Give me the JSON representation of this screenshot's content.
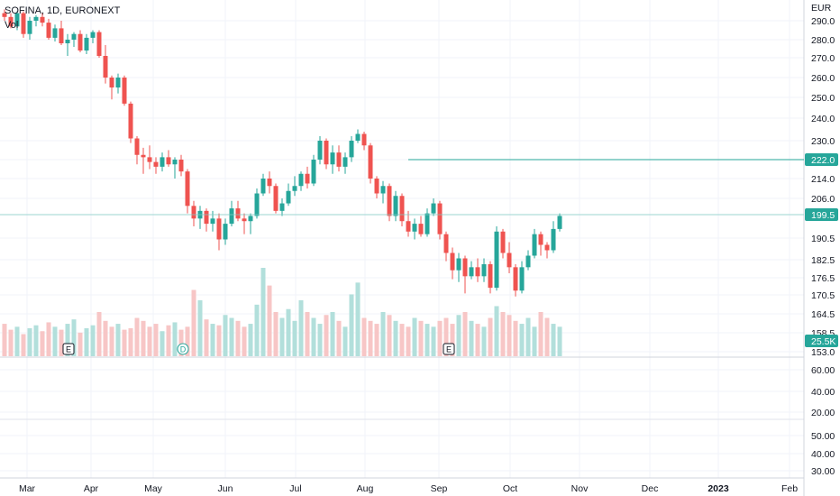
{
  "header": {
    "title": "SOFINA, 1D, EURONEXT",
    "volume_label": "Vol"
  },
  "colors": {
    "up": "#26a69a",
    "down": "#ef5350",
    "up_vol": "#b2dfdb",
    "down_vol": "#f7c6c6",
    "grid": "#f0f3fa"
  },
  "price_axis": {
    "currency": "EUR",
    "ticks": [
      "290.0",
      "280.0",
      "270.0",
      "260.0",
      "250.0",
      "240.0",
      "230.0",
      "222.0",
      "214.0",
      "206.0",
      "199.5",
      "190.5",
      "182.5",
      "176.5",
      "170.5",
      "164.5",
      "158.5",
      "153.0"
    ],
    "price_line_label": "222.0",
    "last_price_label": "199.5",
    "volume_label": "25.5K"
  },
  "lower_axis": {
    "ticks_top": [
      "60.00",
      "40.00",
      "20.00"
    ],
    "ticks_bottom": [
      "50.00",
      "40.00",
      "30.00"
    ]
  },
  "time_axis": {
    "labels": [
      "Mar",
      "Apr",
      "May",
      "Jun",
      "Jul",
      "Aug",
      "Sep",
      "Oct",
      "Nov",
      "Dec",
      "2023",
      "Feb"
    ]
  },
  "events": [
    {
      "label": "E",
      "type": "earnings"
    },
    {
      "label": "D",
      "type": "dividend"
    },
    {
      "label": "E",
      "type": "earnings"
    }
  ],
  "chart_data": {
    "type": "candlestick",
    "title": "SOFINA, 1D, EURONEXT",
    "series": [
      {
        "name": "Price",
        "values": [
          [
            294,
            296,
            290,
            292
          ],
          [
            292,
            294,
            286,
            287
          ],
          [
            287,
            295,
            285,
            294
          ],
          [
            294,
            295,
            281,
            283
          ],
          [
            283,
            292,
            280,
            290
          ],
          [
            290,
            293,
            287,
            292
          ],
          [
            292,
            294,
            287,
            289
          ],
          [
            289,
            291,
            280,
            281
          ],
          [
            281,
            288,
            279,
            286
          ],
          [
            286,
            290,
            277,
            278
          ],
          [
            278,
            283,
            271,
            280
          ],
          [
            280,
            284,
            276,
            283
          ],
          [
            283,
            285,
            273,
            274
          ],
          [
            274,
            283,
            272,
            281
          ],
          [
            281,
            285,
            278,
            284
          ],
          [
            284,
            285,
            270,
            271
          ],
          [
            271,
            277,
            257,
            260
          ],
          [
            260,
            261,
            249,
            255
          ],
          [
            255,
            262,
            252,
            260
          ],
          [
            260,
            261,
            246,
            247
          ],
          [
            247,
            248,
            229,
            231
          ],
          [
            231,
            232,
            220,
            224
          ],
          [
            224,
            227,
            216,
            223
          ],
          [
            223,
            228,
            218,
            221
          ],
          [
            221,
            223,
            216,
            219
          ],
          [
            219,
            225,
            217,
            223
          ],
          [
            223,
            226,
            219,
            220
          ],
          [
            220,
            223,
            214,
            222
          ],
          [
            222,
            224,
            215,
            217
          ],
          [
            217,
            218,
            200,
            203
          ],
          [
            203,
            205,
            195,
            198
          ],
          [
            198,
            203,
            194,
            201
          ],
          [
            201,
            202,
            193,
            196
          ],
          [
            196,
            201,
            193,
            198
          ],
          [
            198,
            200,
            186,
            190
          ],
          [
            190,
            198,
            188,
            196
          ],
          [
            196,
            205,
            195,
            202
          ],
          [
            202,
            205,
            197,
            198
          ],
          [
            198,
            200,
            192,
            197
          ],
          [
            197,
            200,
            192,
            199
          ],
          [
            199,
            210,
            198,
            208
          ],
          [
            208,
            216,
            207,
            214
          ],
          [
            214,
            217,
            208,
            211
          ],
          [
            211,
            212,
            200,
            201
          ],
          [
            201,
            206,
            199,
            204
          ],
          [
            204,
            212,
            203,
            209
          ],
          [
            209,
            215,
            207,
            211
          ],
          [
            211,
            217,
            209,
            216
          ],
          [
            216,
            219,
            210,
            212
          ],
          [
            212,
            224,
            211,
            222
          ],
          [
            222,
            232,
            220,
            230
          ],
          [
            230,
            231,
            218,
            220
          ],
          [
            220,
            228,
            216,
            225
          ],
          [
            225,
            228,
            217,
            219
          ],
          [
            219,
            225,
            216,
            223
          ],
          [
            223,
            232,
            221,
            230
          ],
          [
            230,
            235,
            229,
            233
          ],
          [
            233,
            234,
            226,
            228
          ],
          [
            228,
            229,
            212,
            214
          ],
          [
            214,
            215,
            206,
            208
          ],
          [
            208,
            213,
            204,
            211
          ],
          [
            211,
            212,
            197,
            199
          ],
          [
            199,
            209,
            197,
            207
          ],
          [
            207,
            208,
            195,
            197
          ],
          [
            197,
            201,
            191,
            193
          ],
          [
            193,
            198,
            190,
            196
          ],
          [
            196,
            199,
            191,
            192
          ],
          [
            192,
            202,
            191,
            200
          ],
          [
            200,
            206,
            199,
            204
          ],
          [
            204,
            205,
            190,
            192
          ],
          [
            192,
            193,
            182,
            185
          ],
          [
            185,
            187,
            176,
            179
          ],
          [
            179,
            185,
            175,
            183
          ],
          [
            183,
            184,
            171,
            177
          ],
          [
            177,
            182,
            176,
            180
          ],
          [
            180,
            183,
            175,
            177
          ],
          [
            177,
            183,
            175,
            181
          ],
          [
            181,
            182,
            171,
            173
          ],
          [
            173,
            195,
            172,
            193
          ],
          [
            193,
            194,
            183,
            185
          ],
          [
            185,
            189,
            178,
            180
          ],
          [
            180,
            181,
            170,
            172
          ],
          [
            172,
            182,
            171,
            180
          ],
          [
            180,
            186,
            179,
            184
          ],
          [
            184,
            194,
            183,
            192
          ],
          [
            192,
            193,
            184,
            188
          ],
          [
            188,
            189,
            183,
            186
          ],
          [
            186,
            197,
            185,
            194
          ],
          [
            194,
            200,
            193,
            199
          ]
        ]
      },
      {
        "name": "Vol",
        "values": [
          22,
          18,
          20,
          15,
          19,
          21,
          17,
          23,
          20,
          18,
          22,
          25,
          16,
          19,
          21,
          30,
          24,
          20,
          22,
          18,
          19,
          26,
          24,
          20,
          22,
          17,
          21,
          23,
          18,
          20,
          45,
          38,
          25,
          22,
          21,
          28,
          26,
          24,
          20,
          22,
          35,
          60,
          48,
          30,
          26,
          32,
          24,
          38,
          30,
          26,
          22,
          28,
          30,
          24,
          20,
          42,
          50,
          26,
          24,
          22,
          30,
          28,
          24,
          22,
          20,
          26,
          24,
          22,
          20,
          24,
          26,
          22,
          28,
          30,
          24,
          22,
          20,
          26,
          34,
          30,
          28,
          24,
          22,
          26,
          20,
          30,
          26,
          22,
          20
        ]
      }
    ],
    "ylim": [
      153,
      292
    ],
    "price_line": 222.0,
    "last_price": 199.5
  }
}
